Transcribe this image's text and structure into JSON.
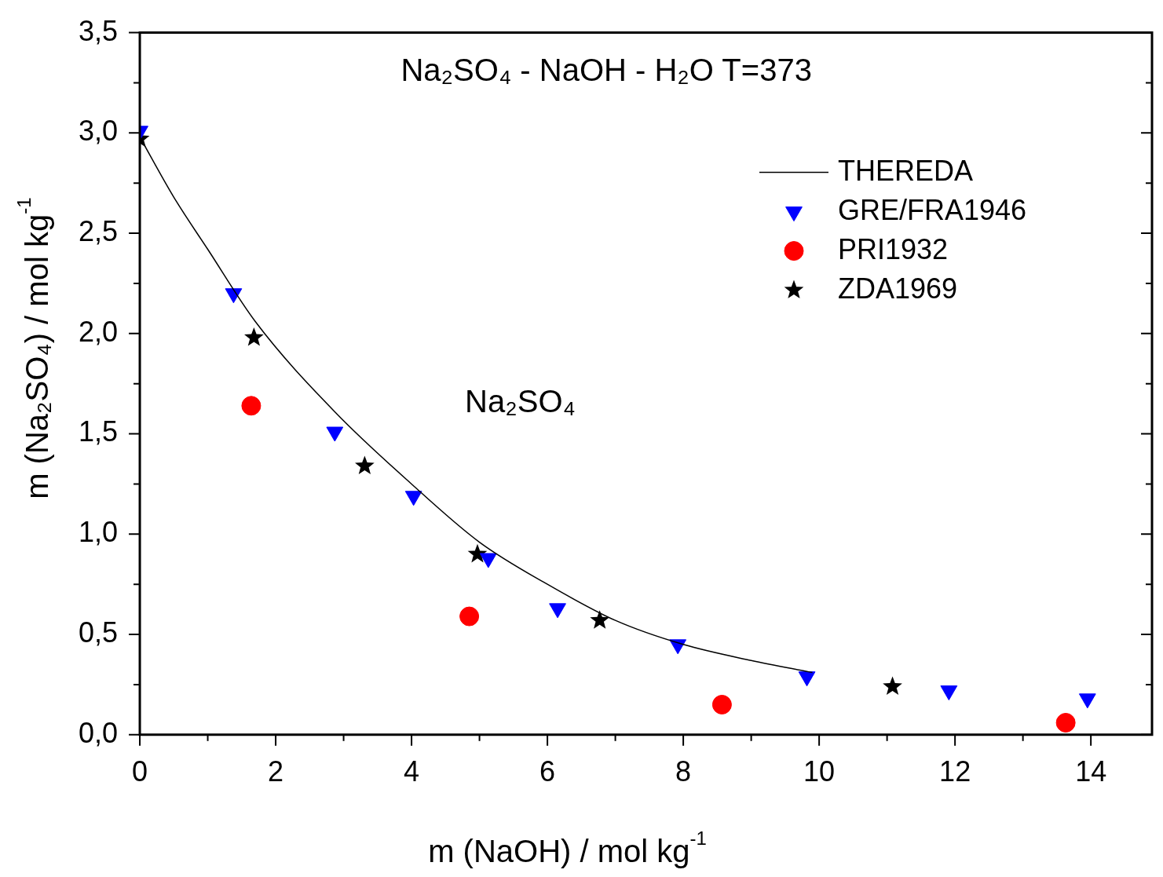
{
  "chart_data": {
    "type": "scatter",
    "title": "Na₂SO₄ - NaOH - H₂O T=373",
    "xlabel": "m (NaOH) / mol kg$^{-1}$",
    "ylabel": "m (Na₂SO₄) / mol kg$^{-1}$",
    "annotations": [
      "Na₂SO₄"
    ],
    "xlim": [
      0,
      14.9
    ],
    "ylim": [
      0,
      3.5
    ],
    "xticks": [
      0,
      {
        "value": 1,
        "label": null
      },
      2,
      {
        "value": 3,
        "label": null
      },
      4,
      {
        "value": 5,
        "label": null
      },
      6,
      {
        "value": 7,
        "label": null
      },
      8,
      {
        "value": 9,
        "label": null
      },
      10,
      {
        "value": 11,
        "label": null
      },
      12,
      {
        "value": 13,
        "label": null
      },
      14
    ],
    "yticks": [
      {
        "value": 0,
        "label": "0,0"
      },
      {
        "value": 0.25,
        "label": null
      },
      {
        "value": 0.5,
        "label": "0,5"
      },
      {
        "value": 0.75,
        "label": null
      },
      {
        "value": 1,
        "label": "1,0"
      },
      {
        "value": 1.25,
        "label": null
      },
      {
        "value": 1.5,
        "label": "1,5"
      },
      {
        "value": 1.75,
        "label": null
      },
      {
        "value": 2,
        "label": "2,0"
      },
      {
        "value": 2.25,
        "label": null
      },
      {
        "value": 2.5,
        "label": "2,5"
      },
      {
        "value": 2.75,
        "label": null
      },
      {
        "value": 3,
        "label": "3,0"
      },
      {
        "value": 3.25,
        "label": null
      },
      {
        "value": 3.5,
        "label": "3,5"
      }
    ],
    "legend": "top right",
    "series": [
      {
        "name": "THEREDA",
        "type": "line",
        "marker": "none",
        "color": "#000000",
        "x": [
          0,
          0.5,
          1,
          1.7,
          2.87,
          4,
          5,
          6,
          7,
          8,
          9,
          9.9
        ],
        "values": [
          2.98,
          2.68,
          2.42,
          2.06,
          1.61,
          1.25,
          0.96,
          0.75,
          0.57,
          0.45,
          0.37,
          0.31
        ]
      },
      {
        "name": "GRE/FRA1946",
        "type": "scatter",
        "marker": "triangle",
        "color": "#0000ff",
        "x": [
          0,
          1.38,
          2.87,
          4.03,
          5.13,
          6.15,
          7.92,
          9.82,
          11.91,
          13.95
        ],
        "values": [
          3.01,
          2.2,
          1.51,
          1.19,
          0.88,
          0.63,
          0.45,
          0.29,
          0.22,
          0.18
        ]
      },
      {
        "name": "PRI1932",
        "type": "scatter",
        "marker": "circle",
        "color": "#ff0000",
        "x": [
          1.64,
          4.85,
          8.57,
          13.63
        ],
        "values": [
          1.64,
          0.59,
          0.15,
          0.06
        ]
      },
      {
        "name": "ZDA1969",
        "type": "scatter",
        "marker": "star",
        "color": "#000000",
        "x": [
          0,
          1.68,
          3.31,
          4.97,
          6.77,
          11.08
        ],
        "values": [
          2.97,
          1.98,
          1.34,
          0.9,
          0.57,
          0.24
        ]
      }
    ]
  }
}
